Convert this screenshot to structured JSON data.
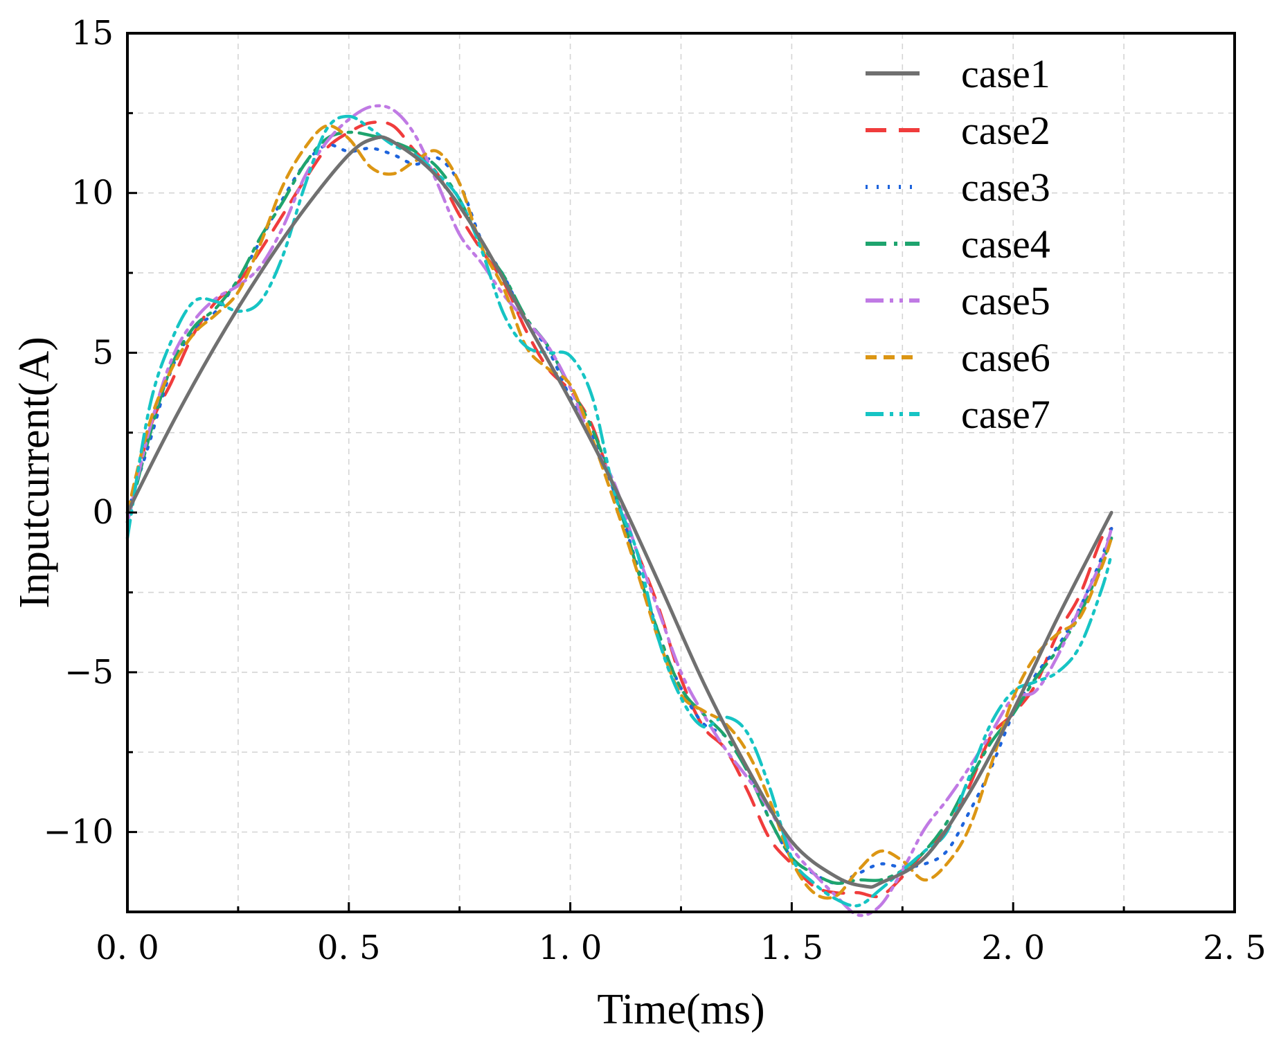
{
  "chart_data": {
    "type": "line",
    "xlabel": "Time(ms)",
    "ylabel": "Inputcurrent(A)",
    "xlim": [
      0,
      2.5
    ],
    "ylim": [
      -12.5,
      15
    ],
    "grid": true,
    "legend_position": "top-right",
    "x_ticks": [
      0.0,
      0.5,
      1.0,
      1.5,
      2.0,
      2.5
    ],
    "x_tick_labels": [
      "0. 0",
      "0. 5",
      "1. 0",
      "1. 5",
      "2. 0",
      "2. 5"
    ],
    "y_ticks": [
      -10,
      -5,
      0,
      5,
      10,
      15
    ],
    "y_tick_labels": [
      "−10",
      "−5",
      "0",
      "5",
      "10",
      "15"
    ],
    "series": [
      {
        "name": "case1",
        "color": "#707070",
        "dash": "solid",
        "x": [
          0,
          0.1,
          0.2,
          0.3,
          0.4,
          0.5,
          0.556,
          0.6,
          0.7,
          0.8,
          0.9,
          1.0,
          1.1,
          1.2,
          1.3,
          1.4,
          1.5,
          1.6,
          1.667,
          1.7,
          1.8,
          1.9,
          2.0,
          2.1,
          2.222
        ],
        "y": [
          0,
          2.75,
          5.25,
          7.5,
          9.5,
          11.2,
          11.7,
          11.6,
          10.5,
          8.5,
          6.0,
          3.5,
          0.8,
          -2.2,
          -5.3,
          -8.0,
          -10.3,
          -11.4,
          -11.7,
          -11.6,
          -10.8,
          -8.8,
          -6.2,
          -3.3,
          0
        ]
      },
      {
        "name": "case2",
        "color": "#f03c3c",
        "dash": "dashed",
        "x": [
          0,
          0.05,
          0.1,
          0.15,
          0.2,
          0.25,
          0.3,
          0.35,
          0.4,
          0.45,
          0.5,
          0.55,
          0.6,
          0.65,
          0.7,
          0.75,
          0.8,
          0.85,
          0.9,
          0.95,
          1.0,
          1.05,
          1.1,
          1.15,
          1.2,
          1.25,
          1.3,
          1.35,
          1.4,
          1.45,
          1.5,
          1.55,
          1.6,
          1.65,
          1.7,
          1.75,
          1.8,
          1.85,
          1.9,
          1.95,
          2.0,
          2.05,
          2.1,
          2.15,
          2.2,
          2.222
        ],
        "y": [
          -0.3,
          2.6,
          4.1,
          5.6,
          6.6,
          7.2,
          8.2,
          9.3,
          10.4,
          11.4,
          11.9,
          12.2,
          12.1,
          11.3,
          10.6,
          9.3,
          8.2,
          7.2,
          5.7,
          4.5,
          3.8,
          2.7,
          0.6,
          -1.2,
          -3.0,
          -5.2,
          -6.7,
          -7.4,
          -8.7,
          -10.2,
          -11.0,
          -11.7,
          -11.9,
          -11.9,
          -12.0,
          -11.4,
          -10.6,
          -9.9,
          -8.6,
          -7.0,
          -6.3,
          -5.4,
          -3.8,
          -2.6,
          -0.8,
          -0.5
        ]
      },
      {
        "name": "case3",
        "color": "#1e64dc",
        "dash": "dotted",
        "x": [
          0,
          0.05,
          0.1,
          0.15,
          0.2,
          0.25,
          0.3,
          0.35,
          0.4,
          0.45,
          0.5,
          0.55,
          0.6,
          0.65,
          0.7,
          0.75,
          0.8,
          0.85,
          0.9,
          0.95,
          1.0,
          1.05,
          1.1,
          1.15,
          1.2,
          1.25,
          1.3,
          1.35,
          1.4,
          1.45,
          1.5,
          1.55,
          1.6,
          1.65,
          1.7,
          1.75,
          1.8,
          1.85,
          1.9,
          1.95,
          2.0,
          2.05,
          2.1,
          2.15,
          2.2,
          2.222
        ],
        "y": [
          0,
          2.2,
          4.5,
          5.7,
          6.3,
          7.3,
          8.5,
          9.8,
          10.9,
          11.5,
          11.3,
          11.4,
          11.2,
          10.9,
          11.1,
          10.3,
          8.5,
          7.4,
          6.0,
          5.1,
          3.6,
          2.4,
          0.6,
          -1.6,
          -3.8,
          -5.5,
          -6.6,
          -7.0,
          -8.0,
          -9.6,
          -10.8,
          -11.3,
          -11.6,
          -11.3,
          -11.0,
          -11.1,
          -11.0,
          -10.6,
          -9.4,
          -8.0,
          -6.3,
          -5.1,
          -4.2,
          -3.0,
          -1.4,
          -0.5
        ]
      },
      {
        "name": "case4",
        "color": "#1ea46e",
        "dash": "dashdot",
        "x": [
          0,
          0.05,
          0.1,
          0.15,
          0.2,
          0.25,
          0.3,
          0.35,
          0.4,
          0.45,
          0.5,
          0.55,
          0.6,
          0.65,
          0.7,
          0.75,
          0.8,
          0.85,
          0.9,
          0.95,
          1.0,
          1.05,
          1.1,
          1.15,
          1.2,
          1.25,
          1.3,
          1.35,
          1.4,
          1.45,
          1.5,
          1.55,
          1.6,
          1.65,
          1.7,
          1.75,
          1.8,
          1.85,
          1.9,
          1.95,
          2.0,
          2.05,
          2.1,
          2.15,
          2.2,
          2.222
        ],
        "y": [
          -0.3,
          2.4,
          4.6,
          5.8,
          6.4,
          7.3,
          8.6,
          9.7,
          10.9,
          11.7,
          11.9,
          11.8,
          11.6,
          11.3,
          10.8,
          9.8,
          8.4,
          7.4,
          6.1,
          5.2,
          3.9,
          2.6,
          0.7,
          -1.7,
          -3.8,
          -5.5,
          -6.3,
          -7.0,
          -8.1,
          -9.6,
          -10.8,
          -11.3,
          -11.6,
          -11.5,
          -11.5,
          -11.2,
          -10.6,
          -9.7,
          -8.4,
          -7.2,
          -6.3,
          -5.2,
          -4.3,
          -3.2,
          -1.6,
          -0.8
        ]
      },
      {
        "name": "case5",
        "color": "#c07ae4",
        "dash": "dashdotdot",
        "x": [
          0,
          0.05,
          0.1,
          0.15,
          0.2,
          0.25,
          0.3,
          0.35,
          0.4,
          0.45,
          0.5,
          0.55,
          0.6,
          0.65,
          0.7,
          0.75,
          0.8,
          0.85,
          0.9,
          0.95,
          1.0,
          1.05,
          1.1,
          1.15,
          1.2,
          1.25,
          1.3,
          1.35,
          1.4,
          1.45,
          1.5,
          1.55,
          1.6,
          1.65,
          1.7,
          1.75,
          1.8,
          1.85,
          1.9,
          1.95,
          2.0,
          2.05,
          2.1,
          2.15,
          2.2,
          2.222
        ],
        "y": [
          -0.3,
          2.6,
          4.8,
          6.0,
          6.7,
          7.1,
          7.7,
          8.9,
          10.5,
          11.6,
          12.3,
          12.7,
          12.6,
          11.8,
          10.3,
          8.7,
          7.8,
          6.8,
          6.0,
          5.2,
          3.9,
          2.2,
          0.9,
          -1.2,
          -3.1,
          -5.0,
          -6.3,
          -7.4,
          -8.3,
          -9.3,
          -10.5,
          -11.3,
          -12.0,
          -12.6,
          -12.3,
          -11.2,
          -9.9,
          -9.0,
          -8.0,
          -6.9,
          -5.8,
          -5.6,
          -4.5,
          -3.0,
          -1.5,
          -0.5
        ]
      },
      {
        "name": "case6",
        "color": "#dc9614",
        "dash": "shortdash",
        "x": [
          0,
          0.05,
          0.1,
          0.15,
          0.2,
          0.25,
          0.3,
          0.35,
          0.4,
          0.45,
          0.5,
          0.55,
          0.6,
          0.65,
          0.7,
          0.75,
          0.8,
          0.85,
          0.9,
          0.95,
          1.0,
          1.05,
          1.1,
          1.15,
          1.2,
          1.25,
          1.3,
          1.35,
          1.4,
          1.45,
          1.5,
          1.55,
          1.6,
          1.65,
          1.7,
          1.75,
          1.8,
          1.85,
          1.9,
          1.95,
          2.0,
          2.05,
          2.1,
          2.15,
          2.2,
          2.222
        ],
        "y": [
          0,
          2.8,
          4.5,
          5.6,
          6.2,
          6.9,
          8.4,
          10.2,
          11.4,
          12.1,
          11.7,
          10.8,
          10.6,
          11.0,
          11.3,
          10.3,
          8.3,
          7.0,
          5.2,
          4.5,
          4.0,
          2.3,
          0.3,
          -1.8,
          -4.0,
          -5.7,
          -6.2,
          -6.6,
          -7.5,
          -9.0,
          -10.9,
          -11.9,
          -12.0,
          -11.2,
          -10.6,
          -10.9,
          -11.5,
          -11.0,
          -9.9,
          -7.9,
          -5.8,
          -4.5,
          -3.8,
          -3.3,
          -1.7,
          -0.8
        ]
      },
      {
        "name": "case7",
        "color": "#16c4c4",
        "dash": "dashdotdot",
        "x": [
          0,
          0.05,
          0.1,
          0.15,
          0.2,
          0.25,
          0.3,
          0.35,
          0.4,
          0.45,
          0.5,
          0.55,
          0.6,
          0.65,
          0.7,
          0.75,
          0.8,
          0.85,
          0.9,
          0.95,
          1.0,
          1.05,
          1.1,
          1.15,
          1.2,
          1.25,
          1.3,
          1.35,
          1.4,
          1.45,
          1.5,
          1.55,
          1.6,
          1.65,
          1.7,
          1.75,
          1.8,
          1.85,
          1.9,
          1.95,
          2.0,
          2.05,
          2.1,
          2.15,
          2.2,
          2.222
        ],
        "y": [
          -0.8,
          3.3,
          5.4,
          6.6,
          6.6,
          6.3,
          6.6,
          8.0,
          10.2,
          12.0,
          12.4,
          12.0,
          11.5,
          11.2,
          10.6,
          9.8,
          8.2,
          6.2,
          5.2,
          5.0,
          4.9,
          3.6,
          0.6,
          -1.2,
          -4.0,
          -5.8,
          -6.7,
          -6.4,
          -6.9,
          -8.6,
          -10.8,
          -11.6,
          -12.1,
          -12.3,
          -11.8,
          -11.2,
          -10.6,
          -10.0,
          -8.3,
          -6.6,
          -5.6,
          -5.3,
          -5.0,
          -4.2,
          -2.4,
          -1.3
        ]
      }
    ]
  }
}
